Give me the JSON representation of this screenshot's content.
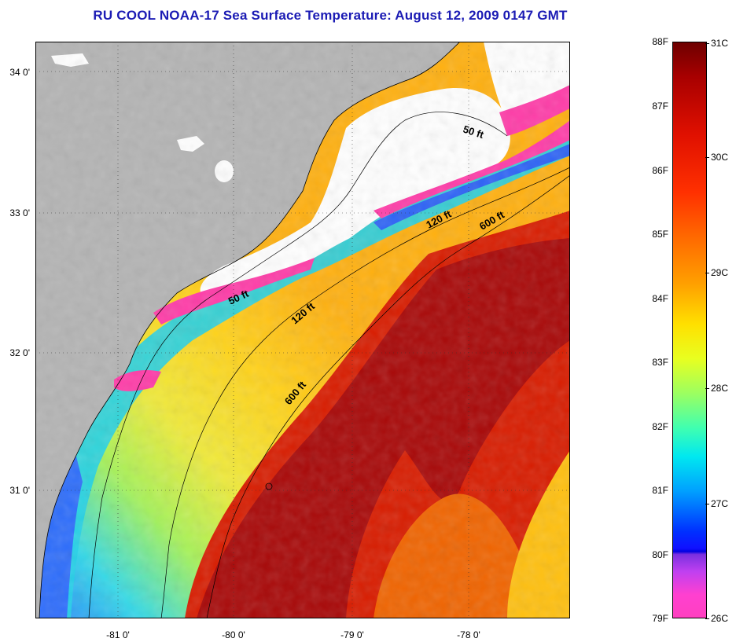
{
  "title": "RU COOL  NOAA-17  Sea Surface Temperature:  August 12, 2009 0147 GMT",
  "lat_labels": [
    "34 0'",
    "33 0'",
    "32 0'",
    "31 0'"
  ],
  "lon_labels": [
    "-81 0'",
    "-80 0'",
    "-79 0'",
    "-78 0'"
  ],
  "contours": [
    {
      "label": "50 ft"
    },
    {
      "label": "120 ft"
    },
    {
      "label": "600 ft"
    },
    {
      "label": "50 ft"
    },
    {
      "label": "120 ft"
    },
    {
      "label": "600 ft"
    }
  ],
  "colorbar": {
    "fahrenheit": [
      "88F",
      "87F",
      "86F",
      "85F",
      "84F",
      "83F",
      "82F",
      "81F",
      "80F",
      "79F"
    ],
    "celsius": [
      "31C",
      "30C",
      "29C",
      "28C",
      "27C",
      "26C"
    ]
  },
  "colors": {
    "land": "#b4b4b4",
    "cloud": "#ffffff",
    "title": "#1b1bb4",
    "warm_core": "#8b0000",
    "gulf_stream": "#d41a00",
    "shelf_yellow": "#f2e83a",
    "nearshore_cyan": "#28e0d8",
    "cold_magenta": "#ff3ca8"
  }
}
